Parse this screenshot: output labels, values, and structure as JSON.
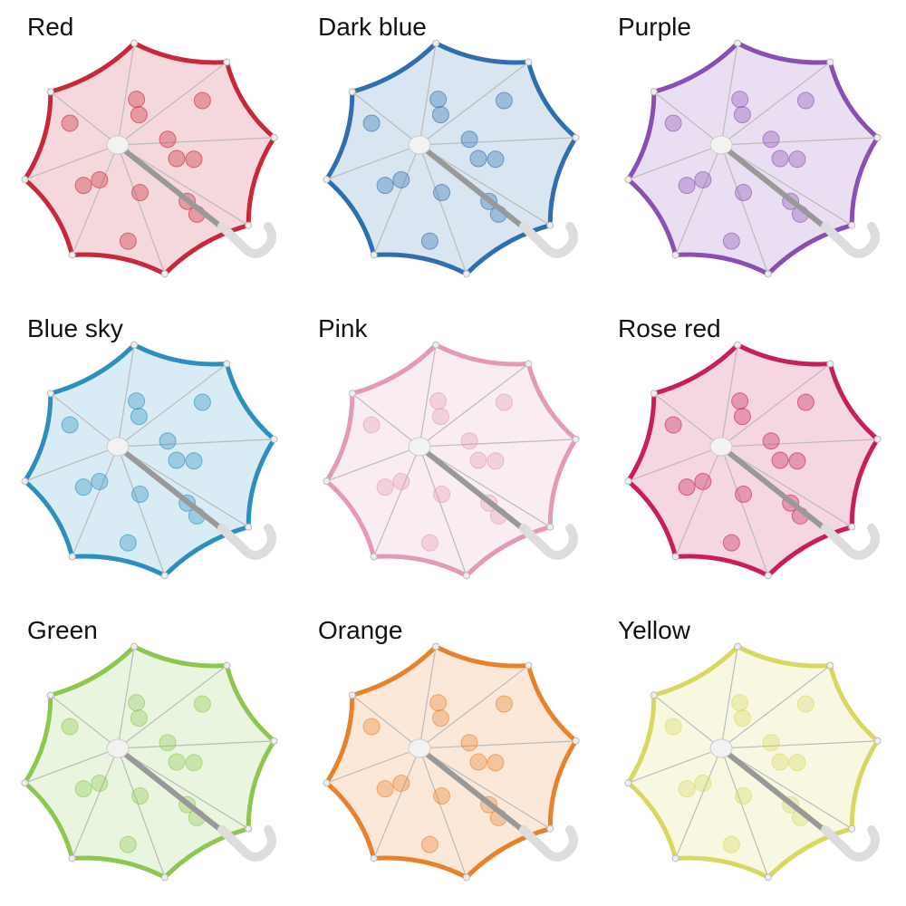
{
  "items": [
    {
      "label": "Red"
    },
    {
      "label": "Dark blue"
    },
    {
      "label": "Purple"
    },
    {
      "label": "Blue sky"
    },
    {
      "label": "Pink"
    },
    {
      "label": "Rose red"
    },
    {
      "label": "Green"
    },
    {
      "label": "Orange"
    },
    {
      "label": "Yellow"
    }
  ]
}
